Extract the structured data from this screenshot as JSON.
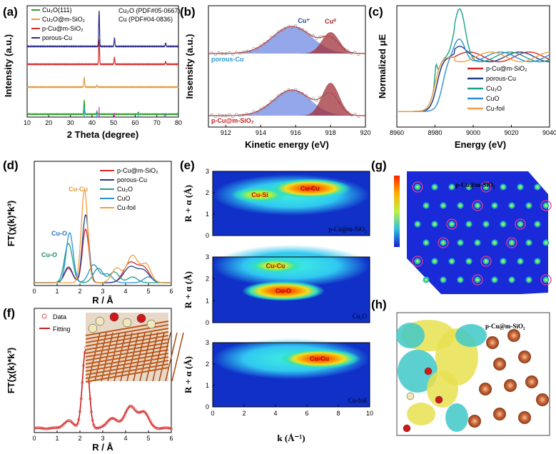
{
  "chart_data": [
    {
      "panel": "(a)",
      "type": "line",
      "xlabel": "2 Theta (degree)",
      "ylabel": "Intensity (a.u.)",
      "xlim": [
        10,
        80
      ],
      "xticks": [
        10,
        20,
        30,
        40,
        50,
        60,
        70,
        80
      ],
      "legend": [
        "Cu2O(111)",
        "Cu2O@m-SiO2",
        "p-Cu@m-SiO2",
        "porous-Cu"
      ],
      "legend_display": [
        "Cu₂O(111)",
        "Cu₂O@m-SiO₂",
        "p-Cu@m-SiO₂",
        "porous-Cu"
      ],
      "colors": [
        "#2ca02c",
        "#e69a3a",
        "#d62728",
        "#2a2a8a"
      ],
      "ref_labels": [
        "Cu₂O (PDF#05-0667)",
        "Cu  (PDF#04-0836)"
      ],
      "ref_colors": [
        "#29a3d6",
        "#e23ad6"
      ],
      "peaks": {
        "Cu2O": [
          36.4,
          42.3,
          61.4,
          73.5
        ],
        "Cu": [
          43.3,
          50.4,
          74.1
        ]
      }
    },
    {
      "panel": "(b)",
      "type": "area",
      "xlabel": "Kinetic energy (eV)",
      "ylabel": "Insensity (a.u.)",
      "xlim": [
        911,
        920
      ],
      "xticks": [
        912,
        914,
        916,
        918,
        920
      ],
      "peak_labels": [
        "Cu⁺",
        "Cu⁰"
      ],
      "peak_centers": [
        915.8,
        918.0
      ],
      "samples": [
        "porous-Cu",
        "p-Cu@m-SiO₂"
      ]
    },
    {
      "panel": "(c)",
      "type": "line",
      "xlabel": "Energy (eV)",
      "ylabel": "Normalized μE",
      "xlim": [
        8960,
        9040
      ],
      "xticks": [
        8960,
        8980,
        9000,
        9020,
        9040
      ],
      "legend": [
        "p-Cu@m-SiO₂",
        "porous-Cu",
        "Cu₂O",
        "CuO",
        "Cu-foil"
      ],
      "colors": [
        "#d62728",
        "#1f3f8a",
        "#1aa08a",
        "#2a8fd6",
        "#f0a040"
      ]
    },
    {
      "panel": "(d)",
      "type": "line",
      "xlabel": "R / Å",
      "ylabel": "FT(χ(k)*k³)",
      "xlim": [
        0,
        6
      ],
      "xticks": [
        0,
        1,
        2,
        3,
        4,
        5,
        6
      ],
      "legend": [
        "p-Cu@m-SiO₂",
        "porous-Cu",
        "Cu₂O",
        "CuO",
        "Cu-foil"
      ],
      "colors": [
        "#d62728",
        "#1f3f8a",
        "#1aa08a",
        "#2a8fd6",
        "#f0a040"
      ],
      "annotations": [
        {
          "text": "Cu-Cu",
          "color": "#e69a3a"
        },
        {
          "text": "Cu-O",
          "color": "#2a6fc0"
        },
        {
          "text": "Cu-O",
          "color": "#1a8a6a"
        }
      ],
      "peaks_R": {
        "Cu-O_1": 1.5,
        "Cu-O_2": 1.85,
        "Cu-Cu": 2.25
      }
    },
    {
      "panel": "(e)",
      "type": "heatmap",
      "xlabel": "k (Å⁻¹)",
      "ylabel": "R + α (Å)",
      "xlim": [
        0,
        10
      ],
      "ylim": [
        0,
        3
      ],
      "xticks": [
        0,
        2,
        4,
        6,
        8,
        10
      ],
      "yticks": [
        0,
        1,
        2,
        3
      ],
      "subplots": [
        {
          "label": "p-Cu@m-SiO₂",
          "features": [
            {
              "text": "Cu-Si",
              "k": 3.0,
              "R": 1.9
            },
            {
              "text": "Cu-Cu",
              "k": 6.2,
              "R": 2.2
            }
          ]
        },
        {
          "label": "Cu₂O",
          "features": [
            {
              "text": "Cu-Cu",
              "k": 4.0,
              "R": 2.6
            },
            {
              "text": "Cu-O",
              "k": 4.5,
              "R": 1.45
            }
          ]
        },
        {
          "label": "Cu-foil",
          "features": [
            {
              "text": "Cu-Cu",
              "k": 6.8,
              "R": 2.25
            }
          ]
        }
      ]
    },
    {
      "panel": "(f)",
      "type": "line",
      "xlabel": "R / Å",
      "ylabel": "FT(χ(k)*k³)",
      "xlim": [
        0,
        6
      ],
      "xticks": [
        0,
        1,
        2,
        3,
        4,
        5,
        6
      ],
      "legend": [
        "Data",
        "Fitting"
      ],
      "colors": [
        "#e05050",
        "#c81e1e"
      ]
    },
    {
      "panel": "(g)",
      "type": "other",
      "label": "p-Cu@m-SiO₂"
    },
    {
      "panel": "(h)",
      "type": "other",
      "label": "p-Cu@m-SiO₂"
    }
  ]
}
